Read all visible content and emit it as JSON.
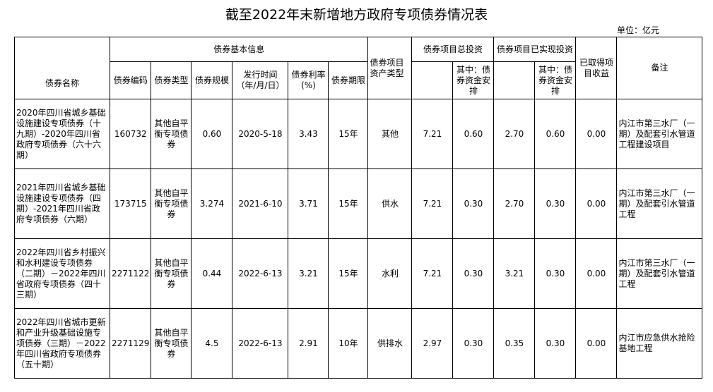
{
  "title": "截至2022年末新增地方政府专项债券情况表",
  "unit": "单位：亿元",
  "headers": {
    "name": "债券名称",
    "basic_info": "债券基本信息",
    "code": "债券编码",
    "type": "债券类型",
    "scale": "债券规模",
    "issue_date": "发行时间（年/月/日）",
    "rate": "债券利率(%)",
    "term": "债券期限",
    "asset_type": "债券项目资产类型",
    "total_investment": "债券项目总投资",
    "total_bond_funds": "其中：债券资金安排",
    "realized_investment": "债券项目已实现投资",
    "realized_bond_funds": "其中：债券资金安排",
    "income": "已取得项目收益",
    "remark": "备注"
  },
  "rows": [
    {
      "name": "2020年四川省城乡基础设施建设专项债券（十九期）-2020年四川省政府专项债券（六十六期）",
      "code": "160732",
      "type": "其他自平衡专项债券",
      "scale": "0.60",
      "issue_date": "2020-5-18",
      "rate": "3.43",
      "term": "15年",
      "asset_type": "其他",
      "total_investment": "7.21",
      "total_bond_funds": "0.60",
      "realized_investment": "2.70",
      "realized_bond_funds": "0.60",
      "income": "0.00",
      "remark": "内江市第三水厂（一期）及配套引水管道工程建设项目"
    },
    {
      "name": "2021年四川省城乡基础设施建设专项债券（四期）-2021年四川省政府专项债券（六期）",
      "code": "173715",
      "type": "其他自平衡专项债券",
      "scale": "3.274",
      "issue_date": "2021-6-10",
      "rate": "3.71",
      "term": "15年",
      "asset_type": "供水",
      "total_investment": "7.21",
      "total_bond_funds": "0.30",
      "realized_investment": "2.70",
      "realized_bond_funds": "0.30",
      "income": "0.00",
      "remark": "内江市第三水厂（一期）及配套引水管道工程"
    },
    {
      "name": "2022年四川省乡村振兴和水利建设专项债券（二期）－2022年四川省政府专项债券（四十三期）",
      "code": "2271122",
      "type": "其他自平衡专项债券",
      "scale": "0.44",
      "issue_date": "2022-6-13",
      "rate": "3.21",
      "term": "15年",
      "asset_type": "水利",
      "total_investment": "7.21",
      "total_bond_funds": "0.30",
      "realized_investment": "3.21",
      "realized_bond_funds": "0.30",
      "income": "0.00",
      "remark": "内江市第三水厂（一期）及配套引水管道工程"
    },
    {
      "name": "2022年四川省城市更新和产业升级基础设施专项债券（三期）－2022年四川省政府专项债券（五十期）",
      "code": "2271129",
      "type": "其他自平衡专项债券",
      "scale": "4.5",
      "issue_date": "2022-6-13",
      "rate": "2.91",
      "term": "10年",
      "asset_type": "供排水",
      "total_investment": "2.97",
      "total_bond_funds": "0.30",
      "realized_investment": "0.35",
      "realized_bond_funds": "0.30",
      "income": "0.00",
      "remark": "内江市应急供水抢险基地工程"
    }
  ]
}
